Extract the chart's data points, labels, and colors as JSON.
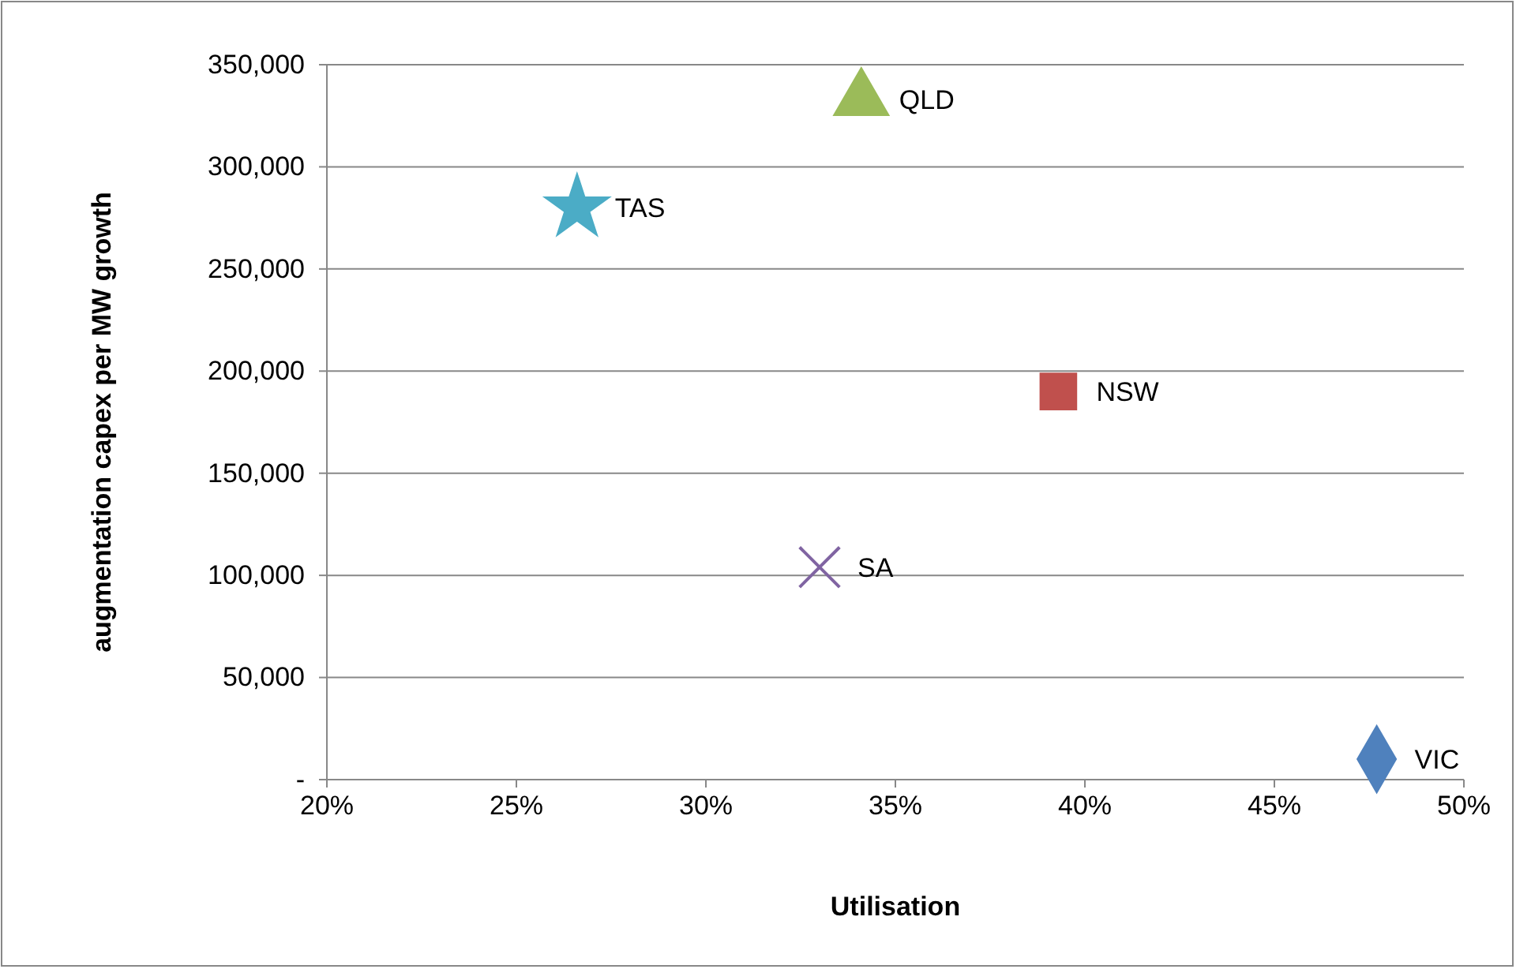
{
  "chart_data": {
    "type": "scatter",
    "xlabel": "Utilisation",
    "ylabel": "augmentation capex per MW growth",
    "xlim": [
      20,
      50
    ],
    "xticks": [
      {
        "value": 20,
        "label": "20%"
      },
      {
        "value": 25,
        "label": "25%"
      },
      {
        "value": 30,
        "label": "30%"
      },
      {
        "value": 35,
        "label": "35%"
      },
      {
        "value": 40,
        "label": "40%"
      },
      {
        "value": 45,
        "label": "45%"
      },
      {
        "value": 50,
        "label": "50%"
      }
    ],
    "ylim": [
      0,
      350000
    ],
    "yticks": [
      {
        "value": 0,
        "label": "-"
      },
      {
        "value": 50000,
        "label": "50,000"
      },
      {
        "value": 100000,
        "label": "100,000"
      },
      {
        "value": 150000,
        "label": "150,000"
      },
      {
        "value": 200000,
        "label": "200,000"
      },
      {
        "value": 250000,
        "label": "250,000"
      },
      {
        "value": 300000,
        "label": "300,000"
      },
      {
        "value": 350000,
        "label": "350,000"
      }
    ],
    "grid": "y",
    "series": [
      {
        "name": "NSW",
        "color": "#c0504d",
        "marker": "square",
        "x": [
          39.3
        ],
        "values": [
          190000
        ]
      },
      {
        "name": "VIC",
        "color": "#4f81bd",
        "marker": "diamond",
        "x": [
          47.7
        ],
        "values": [
          10000
        ]
      },
      {
        "name": "QLD",
        "color": "#9bbb59",
        "marker": "triangle",
        "x": [
          34.1
        ],
        "values": [
          333000
        ]
      },
      {
        "name": "SA",
        "color": "#8064a2",
        "marker": "cross",
        "x": [
          33.0
        ],
        "values": [
          104000
        ]
      },
      {
        "name": "TAS",
        "color": "#4bacc6",
        "marker": "star",
        "x": [
          26.6
        ],
        "values": [
          280000
        ]
      }
    ]
  }
}
